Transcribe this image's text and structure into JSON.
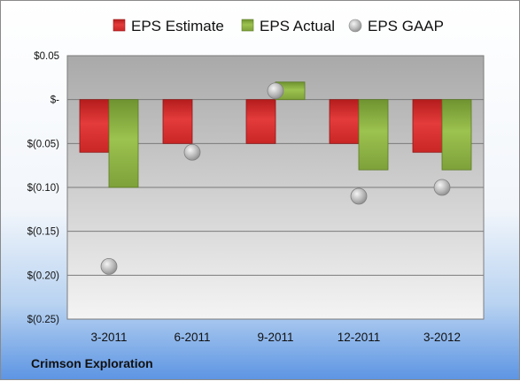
{
  "company": "Crimson Exploration",
  "colors": {
    "estimate": "#d42a2a",
    "actual": "#86ac3b",
    "gaap": "#bfbfbf"
  },
  "chart_data": {
    "type": "bar",
    "categories": [
      "3-2011",
      "6-2011",
      "9-2011",
      "12-2011",
      "3-2012"
    ],
    "series": [
      {
        "name": "EPS Estimate",
        "kind": "bar",
        "values": [
          -0.06,
          -0.05,
          -0.05,
          -0.05,
          -0.06
        ]
      },
      {
        "name": "EPS Actual",
        "kind": "bar",
        "values": [
          -0.1,
          null,
          0.02,
          -0.08,
          -0.08
        ]
      },
      {
        "name": "EPS GAAP",
        "kind": "scatter",
        "values": [
          -0.19,
          -0.06,
          0.01,
          -0.11,
          -0.1
        ]
      }
    ],
    "yticks": [
      0.05,
      0,
      -0.05,
      -0.1,
      -0.15,
      -0.2,
      -0.25
    ],
    "ytick_labels": [
      "$0.05",
      "$-",
      "$(0.05)",
      "$(0.10)",
      "$(0.15)",
      "$(0.20)",
      "$(0.25)"
    ],
    "ylim": [
      -0.25,
      0.05
    ],
    "grid": true,
    "legend_position": "top"
  }
}
